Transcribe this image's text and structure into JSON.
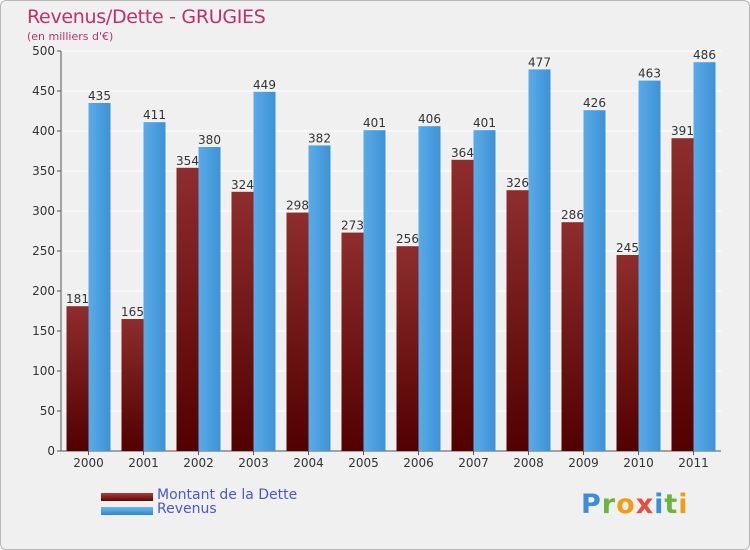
{
  "chart_data": {
    "type": "bar",
    "title": "Revenus/Dette - GRUGIES",
    "subtitle": "(en milliers d'€)",
    "categories": [
      "2000",
      "2001",
      "2002",
      "2003",
      "2004",
      "2005",
      "2006",
      "2007",
      "2008",
      "2009",
      "2010",
      "2011"
    ],
    "series": [
      {
        "name": "Montant de la Dette",
        "color": "#8c2020",
        "values": [
          181,
          165,
          354,
          324,
          298,
          273,
          256,
          364,
          326,
          286,
          245,
          391
        ]
      },
      {
        "name": "Revenus",
        "color": "#4fa3e3",
        "values": [
          435,
          411,
          380,
          449,
          382,
          401,
          406,
          401,
          477,
          426,
          463,
          486
        ]
      }
    ],
    "yticks": [
      0,
      50,
      100,
      150,
      200,
      250,
      300,
      350,
      400,
      450,
      500
    ],
    "ylim": [
      0,
      500
    ],
    "grid": true,
    "legend_position": "bottom-left"
  },
  "logo": {
    "letters": [
      {
        "ch": "P",
        "color": "#3a8fd8"
      },
      {
        "ch": "r",
        "color": "#6cb33f"
      },
      {
        "ch": "o",
        "color": "#f39c12"
      },
      {
        "ch": "x",
        "color": "#e74c3c"
      },
      {
        "ch": "i",
        "color": "#3a8fd8"
      },
      {
        "ch": "t",
        "color": "#6cb33f"
      },
      {
        "ch": "i",
        "color": "#f39c12"
      }
    ]
  }
}
